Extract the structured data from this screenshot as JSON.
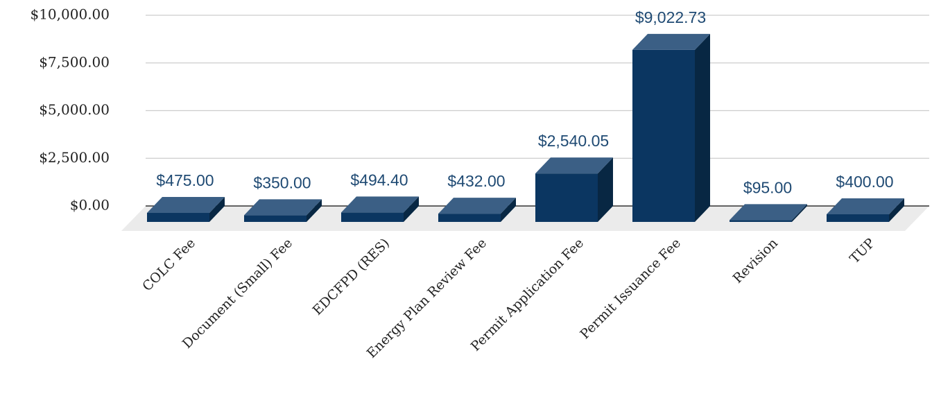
{
  "chart_data": {
    "type": "bar3d",
    "categories": [
      "COLC Fee",
      "Document (Small) Fee",
      "EDCFPD (RES)",
      "Energy Plan Review Fee",
      "Permit Application Fee",
      "Permit Issuance Fee",
      "Revision",
      "TUP"
    ],
    "values": [
      475,
      350,
      494.4,
      432,
      2540.05,
      9022.73,
      95,
      400
    ],
    "value_labels": [
      "$475.00",
      "$350.00",
      "$494.40",
      "$432.00",
      "$2,540.05",
      "$9,022.73",
      "$95.00",
      "$400.00"
    ],
    "color": "#0b3661",
    "ylim": [
      0,
      10000
    ],
    "yticks": [
      {
        "value": 0,
        "label": "$0.00"
      },
      {
        "value": 2500,
        "label": "$2,500.00"
      },
      {
        "value": 5000,
        "label": "$5,000.00"
      },
      {
        "value": 7500,
        "label": "$7,500.00"
      },
      {
        "value": 10000,
        "label": "$10,000.00"
      }
    ],
    "grid": true
  }
}
